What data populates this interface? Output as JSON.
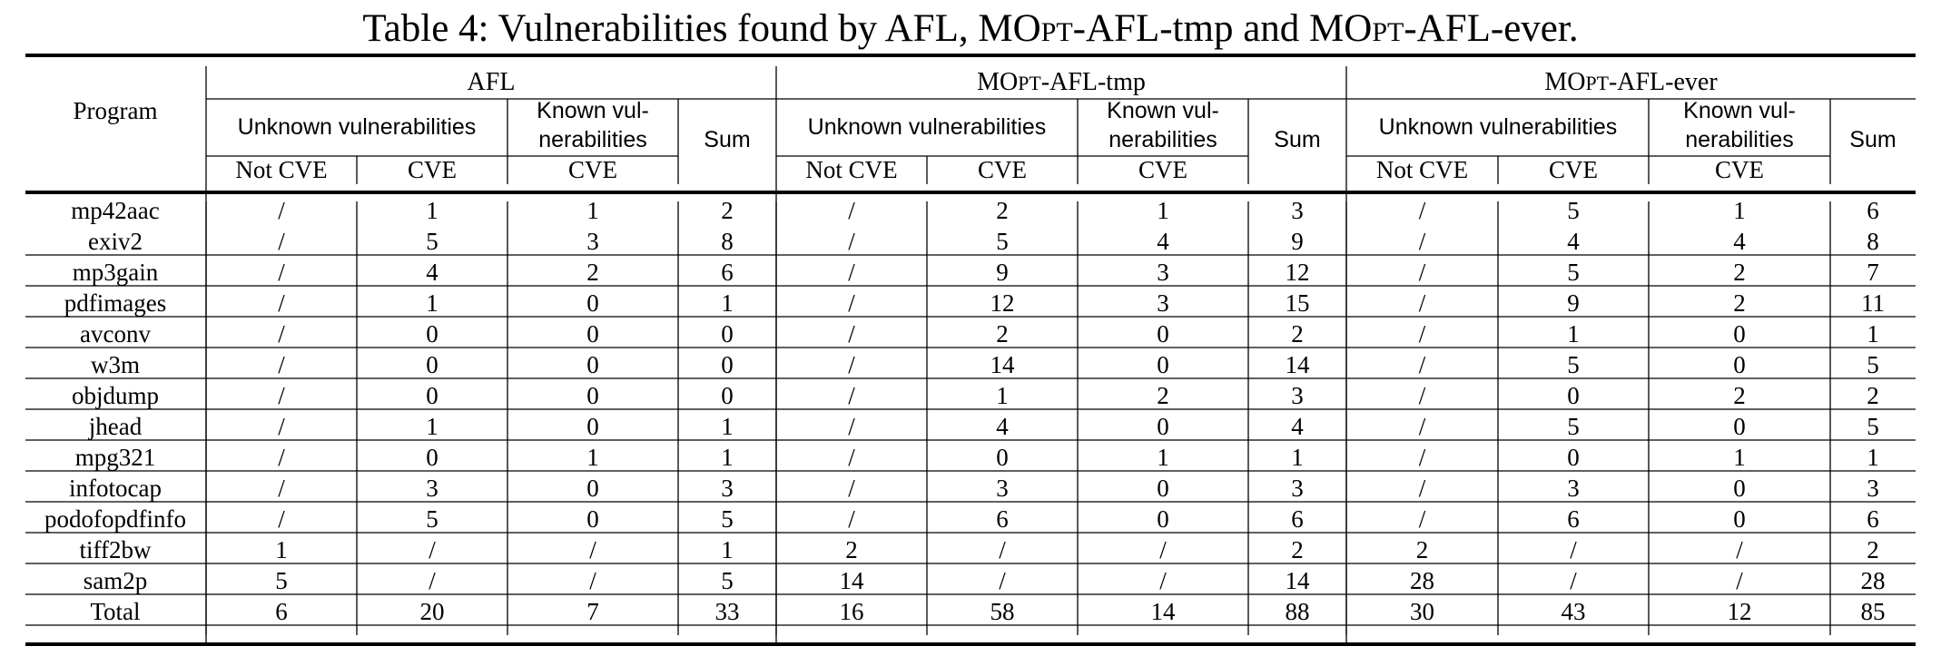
{
  "caption": {
    "label": "Table 4:",
    "text_before": "Vulnerabilities found by AFL, MO",
    "sc1": "pt",
    "text_middle": "-AFL-tmp and MO",
    "sc2": "pt",
    "text_after": "-AFL-ever."
  },
  "header": {
    "program": "Program",
    "tools": [
      {
        "pre": "AFL",
        "sc": "",
        "post": ""
      },
      {
        "pre": "MO",
        "sc": "pt",
        "post": "-AFL-tmp"
      },
      {
        "pre": "MO",
        "sc": "pt",
        "post": "-AFL-ever"
      }
    ],
    "unknown": "Unknown vulnerabilities",
    "known_line1": "Known vul-",
    "known_line2": "nerabilities",
    "sum": "Sum",
    "not_cve": "Not CVE",
    "cve": "CVE"
  },
  "rows": [
    {
      "program": "mp42aac",
      "values": [
        "/",
        "1",
        "1",
        "2",
        "/",
        "2",
        "1",
        "3",
        "/",
        "5",
        "1",
        "6"
      ]
    },
    {
      "program": "exiv2",
      "values": [
        "/",
        "5",
        "3",
        "8",
        "/",
        "5",
        "4",
        "9",
        "/",
        "4",
        "4",
        "8"
      ]
    },
    {
      "program": "mp3gain",
      "values": [
        "/",
        "4",
        "2",
        "6",
        "/",
        "9",
        "3",
        "12",
        "/",
        "5",
        "2",
        "7"
      ]
    },
    {
      "program": "pdfimages",
      "values": [
        "/",
        "1",
        "0",
        "1",
        "/",
        "12",
        "3",
        "15",
        "/",
        "9",
        "2",
        "11"
      ]
    },
    {
      "program": "avconv",
      "values": [
        "/",
        "0",
        "0",
        "0",
        "/",
        "2",
        "0",
        "2",
        "/",
        "1",
        "0",
        "1"
      ]
    },
    {
      "program": "w3m",
      "values": [
        "/",
        "0",
        "0",
        "0",
        "/",
        "14",
        "0",
        "14",
        "/",
        "5",
        "0",
        "5"
      ]
    },
    {
      "program": "objdump",
      "values": [
        "/",
        "0",
        "0",
        "0",
        "/",
        "1",
        "2",
        "3",
        "/",
        "0",
        "2",
        "2"
      ]
    },
    {
      "program": "jhead",
      "values": [
        "/",
        "1",
        "0",
        "1",
        "/",
        "4",
        "0",
        "4",
        "/",
        "5",
        "0",
        "5"
      ]
    },
    {
      "program": "mpg321",
      "values": [
        "/",
        "0",
        "1",
        "1",
        "/",
        "0",
        "1",
        "1",
        "/",
        "0",
        "1",
        "1"
      ]
    },
    {
      "program": "infotocap",
      "values": [
        "/",
        "3",
        "0",
        "3",
        "/",
        "3",
        "0",
        "3",
        "/",
        "3",
        "0",
        "3"
      ]
    },
    {
      "program": "podofopdfinfo",
      "values": [
        "/",
        "5",
        "0",
        "5",
        "/",
        "6",
        "0",
        "6",
        "/",
        "6",
        "0",
        "6"
      ]
    },
    {
      "program": "tiff2bw",
      "values": [
        "1",
        "/",
        "/",
        "1",
        "2",
        "/",
        "/",
        "2",
        "2",
        "/",
        "/",
        "2"
      ]
    },
    {
      "program": "sam2p",
      "values": [
        "5",
        "/",
        "/",
        "5",
        "14",
        "/",
        "/",
        "14",
        "28",
        "/",
        "/",
        "28"
      ]
    },
    {
      "program": "Total",
      "values": [
        "6",
        "20",
        "7",
        "33",
        "16",
        "58",
        "14",
        "88",
        "30",
        "43",
        "12",
        "85"
      ]
    }
  ]
}
